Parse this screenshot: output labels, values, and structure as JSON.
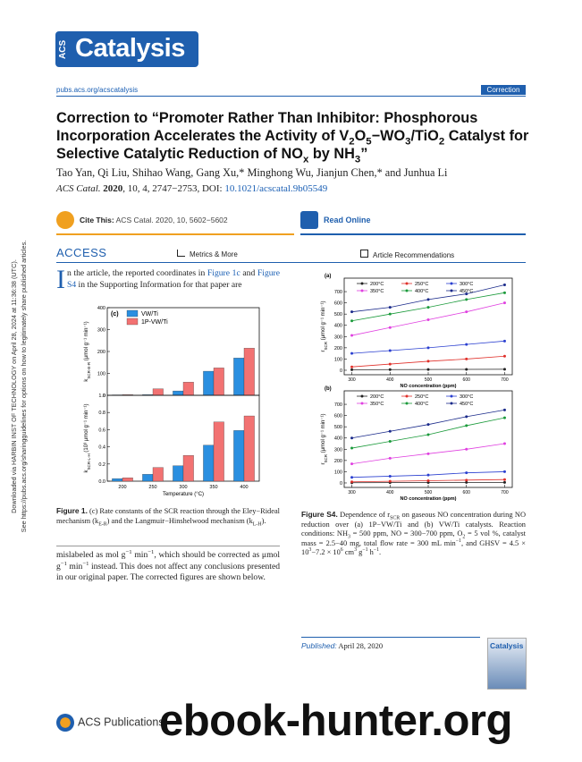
{
  "side_note": [
    "Downloaded via HARBIN INST OF TECHNOLOGY on April 28, 2024 at 11:36:38 (UTC).",
    "See https://pubs.acs.org/sharingguidelines for options on how to legitimately share published articles."
  ],
  "header": {
    "logo_mark": "ACS",
    "journal": "Catalysis",
    "url": "pubs.acs.org/acscatalysis",
    "section": "Correction"
  },
  "title": [
    "Correction to “Promoter Rather Than Inhibitor: Phosphorous Incorporation Accelerates the Activity of V",
    "2",
    "O",
    "5",
    "−WO",
    "3",
    "/TiO",
    "2",
    " Catalyst for Selective Catalytic Reduction of NO",
    "x",
    " by NH",
    "3",
    "”"
  ],
  "authors": "Tao Yan, Qi Liu, Shihao Wang, Gang Xu,* Minghong Wu, Jianjun Chen,* and Junhua Li",
  "original_citation": {
    "journal": "ACS Catal.",
    "year": "2020",
    "rest": ", 10, 4, 2747−2753, DOI: ",
    "doi": "10.1021/acscatal.9b05549"
  },
  "cite_box": {
    "label": "Cite This:",
    "citation": "ACS Catal. 2020, 10, 5602−5602",
    "read_online": "Read Online"
  },
  "access_bar": {
    "access": "ACCESS",
    "metrics": "Metrics & More",
    "recommendations": "Article Recommendations"
  },
  "body_1": {
    "drop_cap": "I",
    "parts": [
      "n the article, the reported coordinates in ",
      "Figure 1c",
      " and ",
      "Figure S4",
      " in the Supporting Information for that paper are"
    ]
  },
  "caption_1": [
    "Figure 1.",
    " (c) Rate constants of the SCR reaction through the Eley−Rideal mechanism (k",
    "E-R",
    ") and the Langmuir−Hinshelwood mechanism (k",
    "L-H",
    ")."
  ],
  "body_2": [
    "mislabeled as mol g",
    "−1",
    " min",
    "−1",
    ", which should be corrected as μmol g",
    "−1",
    " min",
    "−1",
    " instead. This does not affect any conclusions presented in our original paper. The corrected figures are shown below."
  ],
  "caption_s4": [
    "Figure S4.",
    " Dependence of r",
    "SCR",
    " on gaseous NO concentration during NO reduction over (a) 1P−VW/Ti and (b) VW/Ti catalysts. Reaction conditions: NH",
    "3",
    " = 500 ppm, NO = 300−700 ppm, O",
    "2",
    " = 5 vol %, catalyst mass = 2.5−40 mg, total flow rate = 300 mL min",
    "−1",
    ", and GHSV = 4.5 × 10",
    "3",
    "−7.2 × 10",
    "6",
    " cm",
    "3",
    " g",
    "−1",
    " h",
    "−1",
    "."
  ],
  "published": {
    "label": "Published:",
    "date": "April 28, 2020"
  },
  "footer": {
    "publisher": "ACS Publications",
    "watermark": "ebook-hunter.org"
  },
  "chart_data": [
    {
      "type": "bar",
      "title": "(c)",
      "categories": [
        null,
        null,
        null,
        null,
        null
      ],
      "series": [
        {
          "name": "VW/Ti",
          "color": "#2a8fe0",
          "values": [
            2,
            3,
            20,
            110,
            170
          ]
        },
        {
          "name": "1P-VW/Ti",
          "color": "#f27272",
          "values": [
            3,
            30,
            60,
            125,
            215
          ]
        }
      ],
      "y_label": [
        "k",
        "SCR-E-R",
        " (μmol g⁻¹ min⁻¹)"
      ],
      "ylim": [
        0,
        400
      ],
      "yticks": [
        0,
        100,
        200,
        300,
        400
      ]
    },
    {
      "type": "bar",
      "categories": [
        "200",
        "250",
        "300",
        "350",
        "400"
      ],
      "series": [
        {
          "color": "#2a8fe0",
          "values": [
            0.03,
            0.08,
            0.18,
            0.42,
            0.59
          ]
        },
        {
          "color": "#f27272",
          "values": [
            0.04,
            0.16,
            0.3,
            0.69,
            0.76
          ]
        }
      ],
      "x_label": "Temperature (°C)",
      "y_label": [
        "k",
        "SCR-L-H",
        " (10³ μmol g⁻¹ min⁻¹)"
      ],
      "ylim": [
        0,
        1
      ],
      "yticks": [
        {
          "value": 0,
          "label": "0.0"
        },
        0.2,
        0.4,
        0.6,
        0.8,
        {
          "value": 1,
          "label": "1.0"
        }
      ]
    },
    {
      "type": "line",
      "title": "(a)",
      "x": [
        300,
        400,
        500,
        600,
        700
      ],
      "series": [
        {
          "name": "200°C",
          "color": "#222222",
          "values": [
            5,
            6,
            7,
            8,
            9
          ]
        },
        {
          "name": "250°C",
          "color": "#e0302a",
          "values": [
            30,
            55,
            80,
            100,
            125
          ]
        },
        {
          "name": "300°C",
          "color": "#2a3fd0",
          "values": [
            150,
            175,
            200,
            230,
            260
          ]
        },
        {
          "name": "350°C",
          "color": "#e040e0",
          "values": [
            310,
            380,
            450,
            520,
            600
          ]
        },
        {
          "name": "400°C",
          "color": "#1a9a3a",
          "values": [
            440,
            500,
            560,
            630,
            690
          ]
        },
        {
          "name": "450°C",
          "color": "#1a2a8a",
          "values": [
            520,
            560,
            630,
            680,
            760
          ]
        }
      ],
      "x_label": "NO concentration (ppm)",
      "y_label": [
        "r",
        "SCR",
        " (μmol g⁻¹ min⁻¹)"
      ],
      "xlim": [
        280,
        720
      ],
      "xticks": [
        300,
        400,
        500,
        600,
        700
      ],
      "ylim": [
        -40,
        820
      ],
      "yticks": [
        0,
        100,
        200,
        300,
        400,
        500,
        600,
        700
      ]
    },
    {
      "type": "line",
      "title": "(b)",
      "x": [
        300,
        400,
        500,
        600,
        700
      ],
      "series": [
        {
          "name": "200°C",
          "color": "#222222",
          "values": [
            2,
            3,
            4,
            5,
            5
          ]
        },
        {
          "name": "250°C",
          "color": "#e0302a",
          "values": [
            10,
            15,
            20,
            25,
            30
          ]
        },
        {
          "name": "300°C",
          "color": "#2a3fd0",
          "values": [
            50,
            60,
            70,
            90,
            100
          ]
        },
        {
          "name": "350°C",
          "color": "#e040e0",
          "values": [
            170,
            220,
            260,
            300,
            350
          ]
        },
        {
          "name": "400°C",
          "color": "#1a9a3a",
          "values": [
            310,
            370,
            430,
            510,
            580
          ]
        },
        {
          "name": "450°C",
          "color": "#1a2a8a",
          "values": [
            400,
            460,
            520,
            590,
            650
          ]
        }
      ],
      "x_label": "NO concentration (ppm)",
      "y_label": [
        "r",
        "SCR",
        " (μmol g⁻¹ min⁻¹)"
      ],
      "xlim": [
        280,
        720
      ],
      "xticks": [
        300,
        400,
        500,
        600,
        700
      ],
      "ylim": [
        -40,
        820
      ],
      "yticks": [
        0,
        100,
        200,
        300,
        400,
        500,
        600,
        700
      ]
    }
  ]
}
